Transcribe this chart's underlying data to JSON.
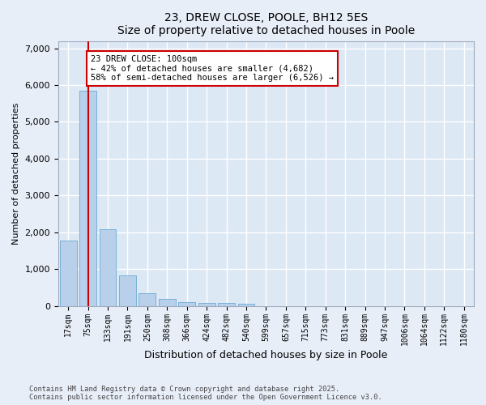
{
  "title1": "23, DREW CLOSE, POOLE, BH12 5ES",
  "title2": "Size of property relative to detached houses in Poole",
  "xlabel": "Distribution of detached houses by size in Poole",
  "ylabel": "Number of detached properties",
  "categories": [
    "17sqm",
    "75sqm",
    "133sqm",
    "191sqm",
    "250sqm",
    "308sqm",
    "366sqm",
    "424sqm",
    "482sqm",
    "540sqm",
    "599sqm",
    "657sqm",
    "715sqm",
    "773sqm",
    "831sqm",
    "889sqm",
    "947sqm",
    "1006sqm",
    "1064sqm",
    "1122sqm",
    "1180sqm"
  ],
  "values": [
    1780,
    5850,
    2080,
    820,
    340,
    190,
    110,
    90,
    80,
    60,
    0,
    0,
    0,
    0,
    0,
    0,
    0,
    0,
    0,
    0,
    0
  ],
  "bar_color": "#b8d0ea",
  "bar_edge_color": "#6aaad4",
  "background_color": "#dde8f5",
  "fig_background_color": "#e8eef8",
  "grid_color": "#ffffff",
  "vline_x": 1,
  "vline_color": "#cc0000",
  "annotation_text": "23 DREW CLOSE: 100sqm\n← 42% of detached houses are smaller (4,682)\n58% of semi-detached houses are larger (6,526) →",
  "annotation_box_color": "#cc0000",
  "ylim": [
    0,
    7200
  ],
  "yticks": [
    0,
    1000,
    2000,
    3000,
    4000,
    5000,
    6000,
    7000
  ],
  "footer1": "Contains HM Land Registry data © Crown copyright and database right 2025.",
  "footer2": "Contains public sector information licensed under the Open Government Licence v3.0."
}
